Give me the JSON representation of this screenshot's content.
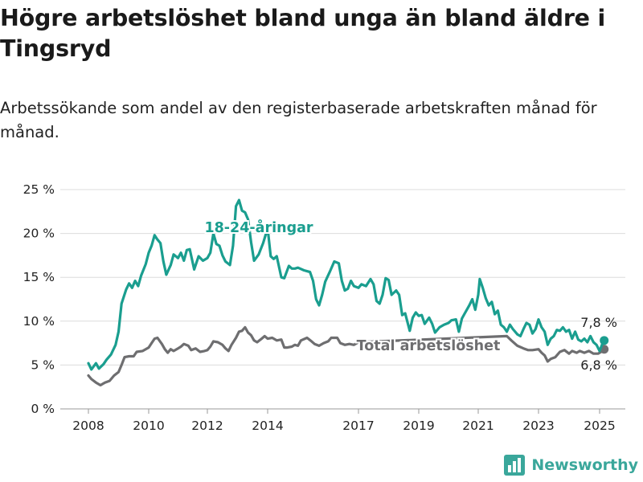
{
  "title": "Högre arbetslöshet bland unga än bland äldre i Tingsryd",
  "subtitle": "Arbetssökande som andel av den registerbaserade arbetskraften månad för månad.",
  "brand": "Newsworthy",
  "colors": {
    "youth": "#1a9e8f",
    "total": "#6e6e70",
    "grid": "#dcdcdc",
    "brand": "#3aa79b"
  },
  "chart_data": {
    "type": "line",
    "title": "Högre arbetslöshet bland unga än bland äldre i Tingsryd",
    "subtitle": "Arbetssökande som andel av den registerbaserade arbetskraften månad för månad.",
    "xlabel": "",
    "ylabel": "",
    "xlim": [
      2007.9,
      2025.4
    ],
    "ylim": [
      0,
      25
    ],
    "grid": "horizontal",
    "x_ticks": [
      2008,
      2010,
      2012,
      2014,
      2017,
      2019,
      2021,
      2023,
      2025
    ],
    "x_tick_labels": [
      "2008",
      "2010",
      "2012",
      "2014",
      "2017",
      "2019",
      "2021",
      "2023",
      "2025"
    ],
    "y_ticks": [
      0,
      5,
      10,
      15,
      20,
      25
    ],
    "y_tick_labels": [
      "0 %",
      "5 %",
      "10 %",
      "15 %",
      "20 %",
      "25 %"
    ],
    "series": [
      {
        "name": "18-24-åringar",
        "color": "#1a9e8f",
        "end_label": "7,8 %",
        "points": [
          [
            2008.0,
            5.2
          ],
          [
            2008.1,
            4.5
          ],
          [
            2008.25,
            5.2
          ],
          [
            2008.35,
            4.6
          ],
          [
            2008.5,
            5.1
          ],
          [
            2008.6,
            5.6
          ],
          [
            2008.75,
            6.2
          ],
          [
            2008.9,
            7.3
          ],
          [
            2009.0,
            8.8
          ],
          [
            2009.1,
            12.0
          ],
          [
            2009.25,
            13.6
          ],
          [
            2009.35,
            14.3
          ],
          [
            2009.45,
            13.8
          ],
          [
            2009.55,
            14.6
          ],
          [
            2009.65,
            14.0
          ],
          [
            2009.75,
            15.2
          ],
          [
            2009.9,
            16.5
          ],
          [
            2010.0,
            17.8
          ],
          [
            2010.1,
            18.6
          ],
          [
            2010.2,
            19.8
          ],
          [
            2010.3,
            19.3
          ],
          [
            2010.4,
            18.9
          ],
          [
            2010.5,
            16.8
          ],
          [
            2010.6,
            15.3
          ],
          [
            2010.75,
            16.4
          ],
          [
            2010.85,
            17.6
          ],
          [
            2011.0,
            17.2
          ],
          [
            2011.1,
            17.8
          ],
          [
            2011.2,
            16.9
          ],
          [
            2011.3,
            18.1
          ],
          [
            2011.4,
            18.2
          ],
          [
            2011.55,
            15.9
          ],
          [
            2011.7,
            17.4
          ],
          [
            2011.85,
            16.9
          ],
          [
            2012.0,
            17.2
          ],
          [
            2012.1,
            17.8
          ],
          [
            2012.2,
            20.0
          ],
          [
            2012.3,
            18.8
          ],
          [
            2012.4,
            18.6
          ],
          [
            2012.5,
            17.5
          ],
          [
            2012.6,
            16.8
          ],
          [
            2012.75,
            16.4
          ],
          [
            2012.85,
            18.6
          ],
          [
            2012.95,
            23.1
          ],
          [
            2013.05,
            23.8
          ],
          [
            2013.15,
            22.6
          ],
          [
            2013.25,
            22.4
          ],
          [
            2013.35,
            21.6
          ],
          [
            2013.45,
            19.0
          ],
          [
            2013.55,
            16.9
          ],
          [
            2013.7,
            17.6
          ],
          [
            2013.85,
            18.9
          ],
          [
            2014.0,
            20.6
          ],
          [
            2014.1,
            17.4
          ],
          [
            2014.2,
            17.1
          ],
          [
            2014.3,
            17.4
          ],
          [
            2014.45,
            15.0
          ],
          [
            2014.55,
            14.9
          ],
          [
            2014.7,
            16.3
          ],
          [
            2014.8,
            16.0
          ],
          [
            2014.9,
            16.0
          ],
          [
            2015.0,
            16.1
          ],
          [
            2015.2,
            15.8
          ],
          [
            2015.4,
            15.6
          ],
          [
            2015.5,
            14.6
          ],
          [
            2015.6,
            12.5
          ],
          [
            2015.7,
            11.8
          ],
          [
            2015.8,
            13.0
          ],
          [
            2015.9,
            14.5
          ],
          [
            2016.05,
            15.6
          ],
          [
            2016.2,
            16.8
          ],
          [
            2016.35,
            16.6
          ],
          [
            2016.45,
            14.6
          ],
          [
            2016.55,
            13.5
          ],
          [
            2016.65,
            13.7
          ],
          [
            2016.75,
            14.6
          ],
          [
            2016.85,
            14.0
          ],
          [
            2017.0,
            13.8
          ],
          [
            2017.1,
            14.2
          ],
          [
            2017.25,
            14.0
          ],
          [
            2017.4,
            14.8
          ],
          [
            2017.5,
            14.2
          ],
          [
            2017.6,
            12.3
          ],
          [
            2017.7,
            12.0
          ],
          [
            2017.8,
            13.0
          ],
          [
            2017.9,
            14.9
          ],
          [
            2018.0,
            14.7
          ],
          [
            2018.1,
            13.0
          ],
          [
            2018.25,
            13.5
          ],
          [
            2018.35,
            13.0
          ],
          [
            2018.45,
            10.7
          ],
          [
            2018.55,
            10.9
          ],
          [
            2018.7,
            8.9
          ],
          [
            2018.8,
            10.4
          ],
          [
            2018.9,
            11.0
          ],
          [
            2019.0,
            10.6
          ],
          [
            2019.1,
            10.7
          ],
          [
            2019.2,
            9.7
          ],
          [
            2019.35,
            10.4
          ],
          [
            2019.45,
            9.7
          ],
          [
            2019.55,
            8.7
          ],
          [
            2019.7,
            9.3
          ],
          [
            2019.85,
            9.6
          ],
          [
            2020.0,
            9.8
          ],
          [
            2020.1,
            10.1
          ],
          [
            2020.25,
            10.2
          ],
          [
            2020.35,
            8.8
          ],
          [
            2020.45,
            10.3
          ],
          [
            2020.55,
            10.9
          ],
          [
            2020.7,
            11.8
          ],
          [
            2020.8,
            12.5
          ],
          [
            2020.9,
            11.3
          ],
          [
            2021.0,
            13.0
          ],
          [
            2021.05,
            14.8
          ],
          [
            2021.15,
            13.8
          ],
          [
            2021.25,
            12.6
          ],
          [
            2021.35,
            11.8
          ],
          [
            2021.45,
            12.2
          ],
          [
            2021.55,
            10.8
          ],
          [
            2021.65,
            11.2
          ],
          [
            2021.75,
            9.6
          ],
          [
            2021.85,
            9.3
          ],
          [
            2021.95,
            8.8
          ],
          [
            2022.05,
            9.6
          ],
          [
            2022.15,
            9.1
          ],
          [
            2022.3,
            8.5
          ],
          [
            2022.4,
            8.3
          ],
          [
            2022.5,
            9.1
          ],
          [
            2022.6,
            9.8
          ],
          [
            2022.7,
            9.6
          ],
          [
            2022.8,
            8.6
          ],
          [
            2022.9,
            9.1
          ],
          [
            2023.0,
            10.2
          ],
          [
            2023.1,
            9.3
          ],
          [
            2023.2,
            8.8
          ],
          [
            2023.3,
            7.3
          ],
          [
            2023.4,
            8.0
          ],
          [
            2023.5,
            8.3
          ],
          [
            2023.6,
            9.0
          ],
          [
            2023.7,
            8.9
          ],
          [
            2023.8,
            9.3
          ],
          [
            2023.9,
            8.8
          ],
          [
            2024.0,
            9.0
          ],
          [
            2024.1,
            8.0
          ],
          [
            2024.2,
            8.8
          ],
          [
            2024.3,
            7.9
          ],
          [
            2024.4,
            7.7
          ],
          [
            2024.5,
            8.0
          ],
          [
            2024.6,
            7.6
          ],
          [
            2024.7,
            8.3
          ],
          [
            2024.8,
            7.6
          ],
          [
            2024.9,
            7.3
          ],
          [
            2025.0,
            6.6
          ],
          [
            2025.1,
            7.5
          ],
          [
            2025.15,
            7.8
          ]
        ]
      },
      {
        "name": "Total arbetslöshet",
        "color": "#6e6e70",
        "end_label": "6,8 %",
        "points": [
          [
            2008.0,
            3.8
          ],
          [
            2008.1,
            3.4
          ],
          [
            2008.25,
            3.0
          ],
          [
            2008.4,
            2.7
          ],
          [
            2008.55,
            3.0
          ],
          [
            2008.7,
            3.2
          ],
          [
            2008.85,
            3.8
          ],
          [
            2009.0,
            4.2
          ],
          [
            2009.1,
            5.0
          ],
          [
            2009.2,
            5.9
          ],
          [
            2009.35,
            6.0
          ],
          [
            2009.5,
            6.0
          ],
          [
            2009.6,
            6.5
          ],
          [
            2009.8,
            6.6
          ],
          [
            2010.0,
            7.0
          ],
          [
            2010.1,
            7.5
          ],
          [
            2010.2,
            8.0
          ],
          [
            2010.3,
            8.1
          ],
          [
            2010.45,
            7.4
          ],
          [
            2010.55,
            6.8
          ],
          [
            2010.65,
            6.4
          ],
          [
            2010.75,
            6.8
          ],
          [
            2010.85,
            6.6
          ],
          [
            2011.0,
            6.9
          ],
          [
            2011.1,
            7.1
          ],
          [
            2011.2,
            7.4
          ],
          [
            2011.35,
            7.2
          ],
          [
            2011.45,
            6.7
          ],
          [
            2011.6,
            6.9
          ],
          [
            2011.75,
            6.5
          ],
          [
            2011.9,
            6.6
          ],
          [
            2012.0,
            6.7
          ],
          [
            2012.1,
            7.1
          ],
          [
            2012.2,
            7.7
          ],
          [
            2012.35,
            7.6
          ],
          [
            2012.5,
            7.3
          ],
          [
            2012.6,
            6.9
          ],
          [
            2012.7,
            6.6
          ],
          [
            2012.8,
            7.3
          ],
          [
            2012.95,
            8.1
          ],
          [
            2013.05,
            8.8
          ],
          [
            2013.15,
            8.9
          ],
          [
            2013.25,
            9.3
          ],
          [
            2013.35,
            8.7
          ],
          [
            2013.45,
            8.4
          ],
          [
            2013.55,
            7.8
          ],
          [
            2013.65,
            7.6
          ],
          [
            2013.8,
            8.0
          ],
          [
            2013.9,
            8.3
          ],
          [
            2014.0,
            8.0
          ],
          [
            2014.15,
            8.1
          ],
          [
            2014.3,
            7.8
          ],
          [
            2014.45,
            7.9
          ],
          [
            2014.55,
            7.0
          ],
          [
            2014.65,
            7.0
          ],
          [
            2014.8,
            7.1
          ],
          [
            2014.9,
            7.3
          ],
          [
            2015.0,
            7.2
          ],
          [
            2015.1,
            7.8
          ],
          [
            2015.3,
            8.1
          ],
          [
            2015.45,
            7.7
          ],
          [
            2015.55,
            7.4
          ],
          [
            2015.7,
            7.2
          ],
          [
            2015.85,
            7.5
          ],
          [
            2016.0,
            7.7
          ],
          [
            2016.1,
            8.1
          ],
          [
            2016.3,
            8.1
          ],
          [
            2016.4,
            7.5
          ],
          [
            2016.55,
            7.3
          ],
          [
            2016.7,
            7.4
          ],
          [
            2016.85,
            7.3
          ],
          [
            2017.0,
            7.6
          ],
          [
            2021.95,
            8.3
          ],
          [
            2022.1,
            7.8
          ],
          [
            2022.3,
            7.2
          ],
          [
            2022.5,
            6.9
          ],
          [
            2022.65,
            6.7
          ],
          [
            2022.8,
            6.7
          ],
          [
            2023.0,
            6.8
          ],
          [
            2023.1,
            6.4
          ],
          [
            2023.2,
            6.1
          ],
          [
            2023.3,
            5.4
          ],
          [
            2023.4,
            5.7
          ],
          [
            2023.55,
            5.9
          ],
          [
            2023.7,
            6.5
          ],
          [
            2023.85,
            6.7
          ],
          [
            2024.0,
            6.3
          ],
          [
            2024.1,
            6.6
          ],
          [
            2024.25,
            6.4
          ],
          [
            2024.35,
            6.6
          ],
          [
            2024.5,
            6.4
          ],
          [
            2024.65,
            6.6
          ],
          [
            2024.8,
            6.3
          ],
          [
            2024.95,
            6.3
          ],
          [
            2025.05,
            6.5
          ],
          [
            2025.15,
            6.8
          ]
        ]
      }
    ]
  }
}
